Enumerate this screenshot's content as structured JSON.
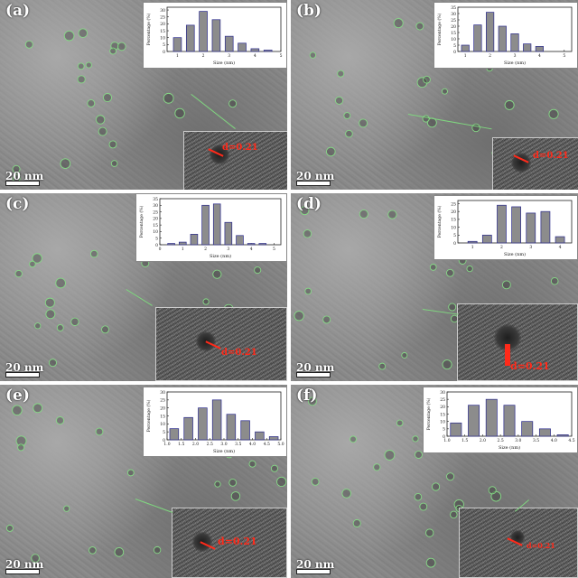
{
  "figure": {
    "panels": [
      {
        "id": "a",
        "letter": "(a)",
        "scale_label": "20 nm",
        "d_label": "d=0.21"
      },
      {
        "id": "b",
        "letter": "(b)",
        "scale_label": "20 nm",
        "d_label": "d=0.21"
      },
      {
        "id": "c",
        "letter": "(c)",
        "scale_label": "20 nm",
        "d_label": "d=0.21"
      },
      {
        "id": "d",
        "letter": "(d)",
        "scale_label": "20 nm",
        "d_label": "d=0.21"
      },
      {
        "id": "e",
        "letter": "(e)",
        "scale_label": "20 nm",
        "d_label": "d=0.21"
      },
      {
        "id": "f",
        "letter": "(f)",
        "scale_label": "20 nm",
        "d_label": "d=0.21"
      }
    ],
    "colors": {
      "particle_ring": "#86d986",
      "bar_fill": "#8c8c8c",
      "bar_stroke": "#2a2a8c",
      "lattice_label": "#ff2a1a"
    }
  },
  "chart_data": [
    {
      "panel": "a",
      "type": "bar",
      "xlabel": "Size (nm)",
      "ylabel": "Percentage (%)",
      "x": [
        1.0,
        1.5,
        2.0,
        2.5,
        3.0,
        3.5,
        4.0,
        4.5
      ],
      "values": [
        10,
        19,
        29,
        23,
        11,
        6,
        2,
        1
      ],
      "xticks": [
        1,
        2,
        3,
        4,
        5
      ],
      "yticks": [
        0,
        5,
        10,
        15,
        20,
        25,
        30
      ],
      "xlim": [
        0.6,
        5.0
      ],
      "ylim": [
        0,
        32
      ]
    },
    {
      "panel": "b",
      "type": "bar",
      "xlabel": "Size (nm)",
      "ylabel": "Percentage (%)",
      "x": [
        1.0,
        1.5,
        2.0,
        2.5,
        3.0,
        3.5,
        4.0,
        4.5,
        5.0
      ],
      "values": [
        5,
        21,
        31,
        20,
        14,
        6,
        4,
        0,
        0
      ],
      "xticks": [
        1,
        2,
        3,
        4,
        5
      ],
      "yticks": [
        0,
        5,
        10,
        15,
        20,
        25,
        30,
        35
      ],
      "xlim": [
        0.7,
        5.3
      ],
      "ylim": [
        0,
        35
      ]
    },
    {
      "panel": "c",
      "type": "bar",
      "xlabel": "Size (nm)",
      "ylabel": "Percentage (%)",
      "x": [
        0.5,
        1.0,
        1.5,
        2.0,
        2.5,
        3.0,
        3.5,
        4.0,
        4.5
      ],
      "values": [
        1,
        2,
        8,
        30,
        31,
        17,
        7,
        1,
        1
      ],
      "xticks": [
        0,
        1,
        2,
        3,
        4,
        5
      ],
      "yticks": [
        0,
        5,
        10,
        15,
        20,
        25,
        30,
        35
      ],
      "xlim": [
        0,
        5.3
      ],
      "ylim": [
        0,
        35
      ]
    },
    {
      "panel": "d",
      "type": "bar",
      "xlabel": "Size (nm)",
      "ylabel": "Percentage (%)",
      "x": [
        1.0,
        1.5,
        2.0,
        2.5,
        3.0,
        3.5,
        4.0
      ],
      "values": [
        1,
        5,
        24,
        23,
        19,
        20,
        4
      ],
      "xticks": [
        1,
        2,
        3,
        4
      ],
      "yticks": [
        0,
        5,
        10,
        15,
        20,
        25
      ],
      "xlim": [
        0.5,
        4.4
      ],
      "ylim": [
        0,
        27
      ]
    },
    {
      "panel": "e",
      "type": "bar",
      "xlabel": "Size (nm)",
      "ylabel": "Percentage (%)",
      "x": [
        1.25,
        1.75,
        2.25,
        2.75,
        3.25,
        3.75,
        4.25,
        4.75
      ],
      "values": [
        7,
        14,
        20,
        25,
        16,
        12,
        5,
        2
      ],
      "xticks": [
        "1.0",
        "1.5",
        "2.0",
        "2.5",
        "3.0",
        "3.5",
        "4.0",
        "4.5",
        "5.0"
      ],
      "yticks": [
        0,
        5,
        10,
        15,
        20,
        25,
        30
      ],
      "xlim": [
        1.0,
        5.0
      ],
      "ylim": [
        0,
        30
      ]
    },
    {
      "panel": "f",
      "type": "bar",
      "xlabel": "Size (nm)",
      "ylabel": "Percentage (%)",
      "x": [
        1.25,
        1.75,
        2.25,
        2.75,
        3.25,
        3.75,
        4.25
      ],
      "values": [
        9,
        21,
        25,
        21,
        10,
        5,
        1
      ],
      "xticks": [
        "1.0",
        "1.5",
        "2.0",
        "2.5",
        "3.0",
        "3.5",
        "4.0",
        "4.5"
      ],
      "yticks": [
        0,
        5,
        10,
        15,
        20,
        25,
        30
      ],
      "xlim": [
        1.0,
        4.5
      ],
      "ylim": [
        0,
        30
      ]
    }
  ]
}
